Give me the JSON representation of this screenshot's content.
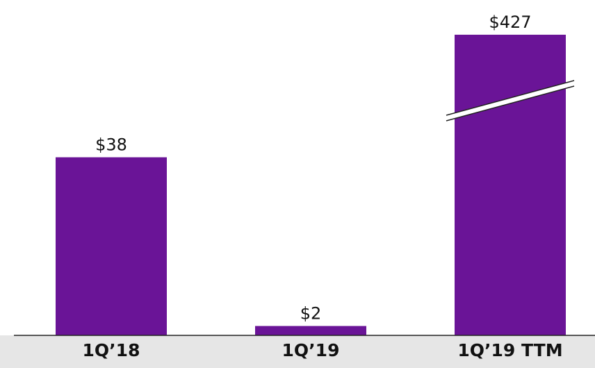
{
  "colors": {
    "bar": "#6a1497",
    "axis_band": "#e6e6e6",
    "axis_line": "#222222",
    "break_mark": "#ffffff"
  },
  "chart_data": {
    "type": "bar",
    "title": "",
    "xlabel": "",
    "ylabel": "",
    "categories": [
      "1Q’18",
      "1Q’19",
      "1Q’19 TTM"
    ],
    "values": [
      38,
      2,
      427
    ],
    "data_labels": [
      "$38",
      "$2",
      "$427"
    ],
    "axis_break": {
      "category": "1Q’19 TTM"
    },
    "grid": false,
    "legend": "none"
  }
}
